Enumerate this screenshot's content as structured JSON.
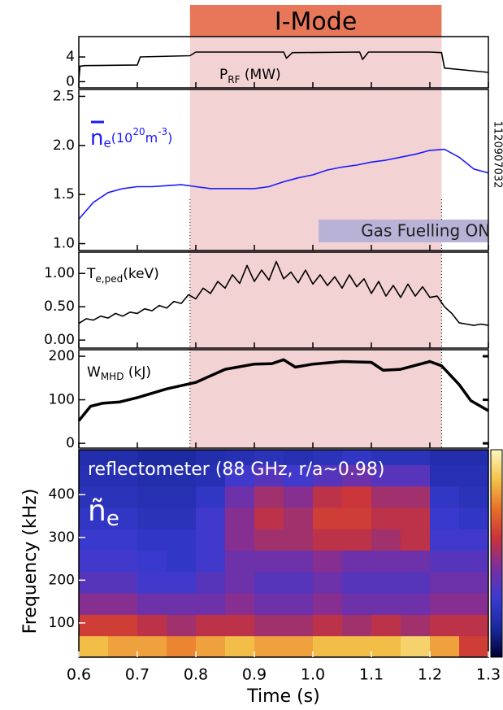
{
  "chart_data": [
    {
      "type": "line",
      "label_main": "P",
      "label_sub": "RF",
      "label_unit": " (MW)",
      "color": "#000000",
      "xlim": [
        0.6,
        1.3
      ],
      "ylim": [
        -1,
        7.3
      ],
      "yticks": [
        0,
        4
      ],
      "imode": {
        "label": "I-Mode",
        "start": 0.79,
        "end": 1.22,
        "color": "#e8775a",
        "shade": "#f3d2d3"
      },
      "x": [
        0.6,
        0.602,
        0.61,
        0.7,
        0.705,
        0.79,
        0.8,
        0.95,
        0.955,
        0.965,
        1.08,
        1.085,
        1.095,
        1.2,
        1.22,
        1.225,
        1.3
      ],
      "values": [
        0.2,
        2.5,
        2.6,
        2.7,
        4.0,
        4.2,
        4.8,
        4.8,
        3.8,
        4.7,
        4.8,
        3.6,
        4.8,
        4.8,
        4.7,
        2.2,
        1.5
      ]
    },
    {
      "type": "line",
      "label_main": "n",
      "label_sub": "e",
      "label_a": "(10",
      "label_sup1": "20",
      "label_b": "m",
      "label_sup2": "-3",
      "label_c": ")",
      "color": "#1a1aff",
      "xlim": [
        0.6,
        1.3
      ],
      "ylim": [
        0.93,
        2.57
      ],
      "yticks": [
        {
          "value": 1.0,
          "label": "1.0"
        },
        1.5,
        {
          "value": 2.0,
          "label": "2.0"
        },
        2.5
      ],
      "shot": "1120907032",
      "gas": {
        "label": "Gas Fuelling ON",
        "start": 1.01,
        "end": 1.3,
        "color": "#b7b2d6"
      },
      "x": [
        0.6,
        0.625,
        0.65,
        0.675,
        0.7,
        0.725,
        0.75,
        0.775,
        0.8,
        0.825,
        0.85,
        0.875,
        0.9,
        0.925,
        0.95,
        0.975,
        1.0,
        1.025,
        1.05,
        1.075,
        1.1,
        1.125,
        1.15,
        1.175,
        1.2,
        1.225,
        1.25,
        1.275,
        1.3
      ],
      "values": [
        1.25,
        1.42,
        1.52,
        1.56,
        1.58,
        1.58,
        1.59,
        1.6,
        1.58,
        1.56,
        1.56,
        1.56,
        1.56,
        1.58,
        1.63,
        1.67,
        1.7,
        1.75,
        1.78,
        1.8,
        1.83,
        1.85,
        1.88,
        1.91,
        1.95,
        1.96,
        1.88,
        1.76,
        1.72
      ]
    },
    {
      "type": "line",
      "label_main": "T",
      "label_sub": "e,ped",
      "label_unit": "(keV)",
      "color": "#000000",
      "xlim": [
        0.6,
        1.3
      ],
      "ylim": [
        -0.12,
        1.32
      ],
      "yticks": [
        {
          "value": 0,
          "label": "0.00"
        },
        {
          "value": 0.5,
          "label": "0.50"
        },
        {
          "value": 1,
          "label": "1.00"
        }
      ],
      "x": [
        0.6,
        0.6125,
        0.625,
        0.6375,
        0.65,
        0.6625,
        0.675,
        0.6875,
        0.7,
        0.7125,
        0.725,
        0.7375,
        0.75,
        0.7625,
        0.775,
        0.7875,
        0.8,
        0.8125,
        0.825,
        0.8375,
        0.85,
        0.8625,
        0.875,
        0.8875,
        0.9,
        0.9125,
        0.925,
        0.9375,
        0.95,
        0.9625,
        0.975,
        0.9875,
        1.0,
        1.0125,
        1.025,
        1.0375,
        1.05,
        1.0625,
        1.075,
        1.0875,
        1.1,
        1.1125,
        1.125,
        1.1375,
        1.15,
        1.1625,
        1.175,
        1.1875,
        1.2,
        1.2125,
        1.225,
        1.2375,
        1.25,
        1.2625,
        1.275,
        1.2875,
        1.3
      ],
      "values": [
        0.25,
        0.32,
        0.3,
        0.36,
        0.33,
        0.4,
        0.36,
        0.42,
        0.4,
        0.47,
        0.44,
        0.52,
        0.48,
        0.58,
        0.55,
        0.68,
        0.62,
        0.78,
        0.7,
        0.88,
        0.78,
        0.98,
        0.85,
        1.12,
        0.88,
        1.05,
        0.9,
        1.18,
        0.92,
        1.02,
        0.86,
        1.05,
        0.84,
        0.98,
        0.82,
        0.95,
        0.78,
        0.98,
        0.8,
        0.92,
        0.7,
        0.88,
        0.66,
        0.82,
        0.64,
        0.84,
        0.66,
        0.8,
        0.64,
        0.66,
        0.5,
        0.4,
        0.26,
        0.24,
        0.22,
        0.24,
        0.22
      ]
    },
    {
      "type": "line",
      "label_main": "W",
      "label_sub": "MHD",
      "label_unit": " (kJ)",
      "color": "#000000",
      "xlim": [
        0.6,
        1.3
      ],
      "ylim": [
        -11,
        215
      ],
      "yticks": [
        0,
        100,
        200
      ],
      "x": [
        0.6,
        0.62,
        0.64,
        0.67,
        0.7,
        0.75,
        0.8,
        0.85,
        0.9,
        0.93,
        0.95,
        0.97,
        1.0,
        1.05,
        1.1,
        1.12,
        1.15,
        1.2,
        1.22,
        1.25,
        1.27,
        1.3
      ],
      "values": [
        52,
        85,
        92,
        95,
        105,
        125,
        140,
        170,
        182,
        183,
        192,
        175,
        182,
        188,
        186,
        168,
        170,
        188,
        178,
        135,
        98,
        75
      ]
    },
    {
      "type": "heatmap",
      "title": "reflectometer (88 GHz, r/a~0.98)",
      "label_main": "ñ",
      "label_sub": "e",
      "ylabel": "Frequency (kHz)",
      "xlabel": "Time (s)",
      "xlim": [
        0.6,
        1.3
      ],
      "ylim": [
        20,
        505
      ],
      "xticks": [
        0.6,
        0.7,
        0.8,
        0.9,
        {
          "value": 1.0,
          "label": "1.0"
        },
        1.1,
        1.2,
        1.3
      ],
      "yticks": [
        100,
        200,
        300,
        400
      ],
      "colormap": [
        "#000033",
        "#1a2a9e",
        "#3a3ad0",
        "#7a2fa0",
        "#c8323a",
        "#e8702a",
        "#f3c24a",
        "#fdf7c0"
      ],
      "x_edges": [
        0.6,
        0.65,
        0.7,
        0.75,
        0.8,
        0.85,
        0.9,
        0.95,
        1.0,
        1.05,
        1.1,
        1.15,
        1.2,
        1.25,
        1.3
      ],
      "y_edges": [
        20,
        70,
        120,
        170,
        220,
        270,
        320,
        370,
        420,
        470,
        505
      ],
      "z": [
        [
          0.85,
          0.8,
          0.8,
          0.75,
          0.8,
          0.85,
          0.8,
          0.8,
          0.85,
          0.85,
          0.85,
          0.9,
          0.8,
          0.6
        ],
        [
          0.6,
          0.6,
          0.55,
          0.5,
          0.55,
          0.55,
          0.5,
          0.5,
          0.55,
          0.5,
          0.55,
          0.5,
          0.55,
          0.55
        ],
        [
          0.45,
          0.45,
          0.4,
          0.4,
          0.4,
          0.45,
          0.4,
          0.4,
          0.45,
          0.4,
          0.4,
          0.4,
          0.45,
          0.45
        ],
        [
          0.35,
          0.35,
          0.3,
          0.3,
          0.35,
          0.4,
          0.35,
          0.35,
          0.4,
          0.35,
          0.35,
          0.35,
          0.4,
          0.4
        ],
        [
          0.3,
          0.3,
          0.28,
          0.25,
          0.3,
          0.4,
          0.4,
          0.4,
          0.45,
          0.4,
          0.4,
          0.4,
          0.35,
          0.35
        ],
        [
          0.28,
          0.28,
          0.25,
          0.25,
          0.3,
          0.45,
          0.5,
          0.5,
          0.55,
          0.55,
          0.5,
          0.55,
          0.3,
          0.3
        ],
        [
          0.25,
          0.25,
          0.22,
          0.22,
          0.3,
          0.45,
          0.55,
          0.5,
          0.6,
          0.6,
          0.55,
          0.55,
          0.28,
          0.25
        ],
        [
          0.22,
          0.22,
          0.2,
          0.2,
          0.25,
          0.4,
          0.5,
          0.45,
          0.55,
          0.58,
          0.5,
          0.5,
          0.25,
          0.22
        ],
        [
          0.2,
          0.2,
          0.18,
          0.18,
          0.2,
          0.3,
          0.35,
          0.3,
          0.35,
          0.4,
          0.35,
          0.35,
          0.2,
          0.2
        ],
        [
          0.18,
          0.18,
          0.15,
          0.15,
          0.18,
          0.2,
          0.22,
          0.2,
          0.22,
          0.25,
          0.22,
          0.22,
          0.18,
          0.18
        ]
      ]
    }
  ]
}
